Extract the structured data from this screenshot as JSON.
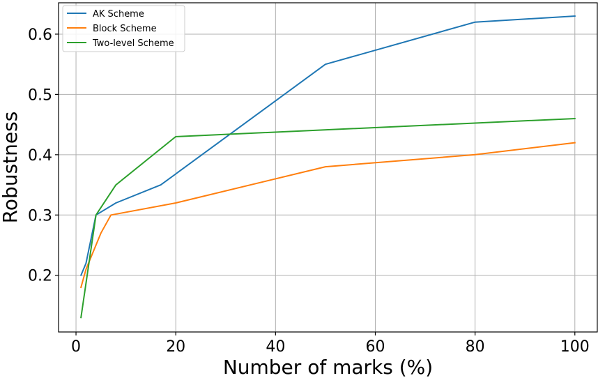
{
  "chart_data": {
    "type": "line",
    "title": "",
    "xlabel": "Number of marks (%)",
    "ylabel": "Robustness",
    "xlim": [
      -3.5,
      104.5
    ],
    "ylim": [
      0.106,
      0.652
    ],
    "xticks": [
      0,
      20,
      40,
      60,
      80,
      100
    ],
    "yticks": [
      0.2,
      0.3,
      0.4,
      0.5,
      0.6
    ],
    "xtick_labels": [
      "0",
      "20",
      "40",
      "60",
      "80",
      "100"
    ],
    "ytick_labels": [
      "0.2",
      "0.3",
      "0.4",
      "0.5",
      "0.6"
    ],
    "grid": true,
    "legend_position": "top-left",
    "series": [
      {
        "name": "AK Scheme",
        "color": "#1f77b4",
        "x": [
          1,
          2,
          4,
          8,
          17,
          50,
          80,
          100
        ],
        "y": [
          0.2,
          0.22,
          0.3,
          0.32,
          0.35,
          0.55,
          0.62,
          0.63
        ]
      },
      {
        "name": "Block Scheme",
        "color": "#ff7f0e",
        "x": [
          1,
          2,
          5,
          7,
          20,
          50,
          80,
          100
        ],
        "y": [
          0.18,
          0.21,
          0.27,
          0.3,
          0.32,
          0.38,
          0.4,
          0.42
        ]
      },
      {
        "name": "Two-level Scheme",
        "color": "#2ca02c",
        "x": [
          1,
          4,
          8,
          20,
          100
        ],
        "y": [
          0.13,
          0.3,
          0.35,
          0.43,
          0.46
        ]
      }
    ]
  }
}
